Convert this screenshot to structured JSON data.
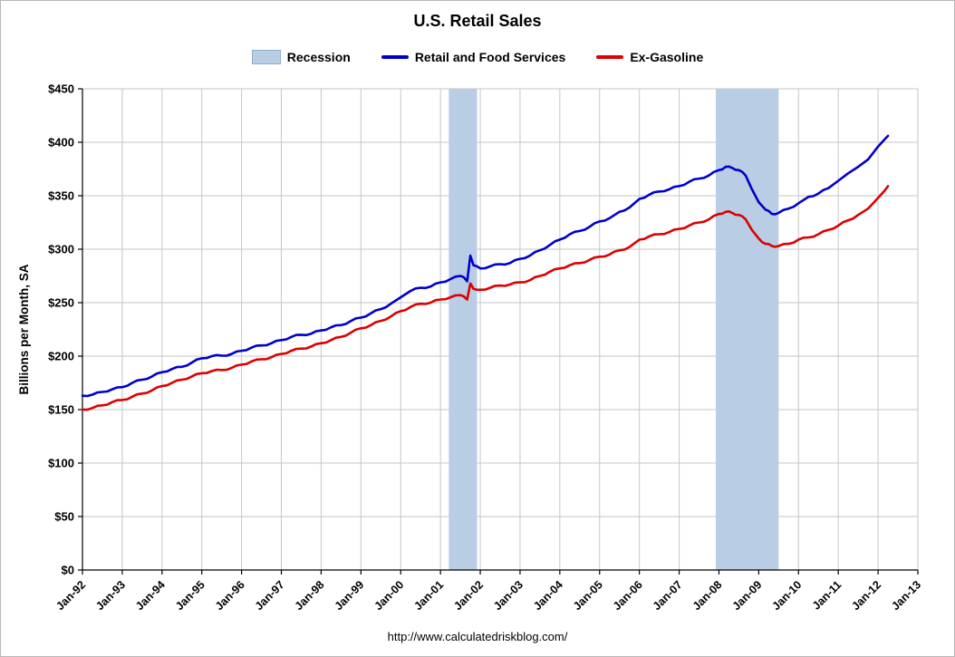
{
  "title": "U.S. Retail Sales",
  "source_url": "http://www.calculatedriskblog.com/",
  "chart_data": {
    "type": "line",
    "title": "U.S. Retail Sales",
    "ylabel": "Billions per Month, SA",
    "xlabel": "",
    "ylim": [
      0,
      450
    ],
    "yticks": [
      0,
      50,
      100,
      150,
      200,
      250,
      300,
      350,
      400,
      450
    ],
    "ytick_labels": [
      "$0",
      "$50",
      "$100",
      "$150",
      "$200",
      "$250",
      "$300",
      "$350",
      "$400",
      "$450"
    ],
    "xlim": [
      1992,
      2013
    ],
    "xticks": [
      1992,
      1993,
      1994,
      1995,
      1996,
      1997,
      1998,
      1999,
      2000,
      2001,
      2002,
      2003,
      2004,
      2005,
      2006,
      2007,
      2008,
      2009,
      2010,
      2011,
      2012,
      2013
    ],
    "xtick_labels": [
      "Jan-92",
      "Jan-93",
      "Jan-94",
      "Jan-95",
      "Jan-96",
      "Jan-97",
      "Jan-98",
      "Jan-99",
      "Jan-00",
      "Jan-01",
      "Jan-02",
      "Jan-03",
      "Jan-04",
      "Jan-05",
      "Jan-06",
      "Jan-07",
      "Jan-08",
      "Jan-09",
      "Jan-10",
      "Jan-11",
      "Jan-12",
      "Jan-13"
    ],
    "grid": true,
    "legend_position": "top",
    "colors": {
      "grid": "#c6c6c6",
      "axis": "#000000",
      "recession_band": "#b9cde5",
      "background": "#ffffff"
    },
    "legend": [
      {
        "label": "Recession",
        "swatch": "box",
        "color": "#b9cde5"
      },
      {
        "label": "Retail and Food Services",
        "swatch": "line",
        "color": "#0000cc"
      },
      {
        "label": "Ex-Gasoline",
        "swatch": "line",
        "color": "#dd0000"
      }
    ],
    "recessions": [
      {
        "start": 2001.21,
        "end": 2001.92
      },
      {
        "start": 2007.92,
        "end": 2009.5
      }
    ],
    "series": [
      {
        "name": "Retail and Food Services",
        "color": "#0000cc",
        "points": [
          [
            1992.0,
            163
          ],
          [
            1992.25,
            164
          ],
          [
            1992.5,
            166.5
          ],
          [
            1992.75,
            169
          ],
          [
            1993.0,
            171
          ],
          [
            1993.25,
            175
          ],
          [
            1993.5,
            178
          ],
          [
            1993.75,
            181
          ],
          [
            1994.0,
            185
          ],
          [
            1994.25,
            188
          ],
          [
            1994.5,
            190
          ],
          [
            1994.75,
            194
          ],
          [
            1995.0,
            198
          ],
          [
            1995.25,
            200
          ],
          [
            1995.5,
            200.5
          ],
          [
            1995.75,
            202
          ],
          [
            1996.0,
            205
          ],
          [
            1996.25,
            208
          ],
          [
            1996.5,
            210
          ],
          [
            1996.75,
            212
          ],
          [
            1997.0,
            215
          ],
          [
            1997.25,
            218
          ],
          [
            1997.5,
            220
          ],
          [
            1997.75,
            221
          ],
          [
            1998.0,
            224
          ],
          [
            1998.25,
            227
          ],
          [
            1998.5,
            229
          ],
          [
            1998.75,
            233
          ],
          [
            1999.0,
            236
          ],
          [
            1999.25,
            240
          ],
          [
            1999.5,
            244
          ],
          [
            1999.75,
            249
          ],
          [
            2000.0,
            255
          ],
          [
            2000.25,
            261
          ],
          [
            2000.5,
            264
          ],
          [
            2000.75,
            265
          ],
          [
            2001.0,
            269
          ],
          [
            2001.25,
            272
          ],
          [
            2001.5,
            275
          ],
          [
            2001.58,
            274
          ],
          [
            2001.67,
            270
          ],
          [
            2001.75,
            294
          ],
          [
            2001.83,
            285
          ],
          [
            2001.92,
            284
          ],
          [
            2002.0,
            282
          ],
          [
            2002.25,
            284
          ],
          [
            2002.5,
            286
          ],
          [
            2002.75,
            287
          ],
          [
            2003.0,
            291
          ],
          [
            2003.25,
            294
          ],
          [
            2003.5,
            299
          ],
          [
            2003.75,
            304
          ],
          [
            2004.0,
            309
          ],
          [
            2004.25,
            314
          ],
          [
            2004.5,
            317
          ],
          [
            2004.75,
            321
          ],
          [
            2005.0,
            326
          ],
          [
            2005.25,
            329
          ],
          [
            2005.5,
            335
          ],
          [
            2005.75,
            339
          ],
          [
            2006.0,
            347
          ],
          [
            2006.25,
            351
          ],
          [
            2006.5,
            354
          ],
          [
            2006.75,
            356
          ],
          [
            2007.0,
            359
          ],
          [
            2007.25,
            363
          ],
          [
            2007.5,
            366
          ],
          [
            2007.75,
            369
          ],
          [
            2008.0,
            374
          ],
          [
            2008.17,
            377
          ],
          [
            2008.33,
            376
          ],
          [
            2008.5,
            374
          ],
          [
            2008.67,
            369
          ],
          [
            2008.83,
            356
          ],
          [
            2009.0,
            344
          ],
          [
            2009.17,
            337
          ],
          [
            2009.33,
            333
          ],
          [
            2009.5,
            334
          ],
          [
            2009.75,
            338
          ],
          [
            2010.0,
            343
          ],
          [
            2010.25,
            349
          ],
          [
            2010.5,
            352
          ],
          [
            2010.75,
            357
          ],
          [
            2011.0,
            364
          ],
          [
            2011.25,
            371
          ],
          [
            2011.5,
            377
          ],
          [
            2011.75,
            384
          ],
          [
            2012.0,
            396
          ],
          [
            2012.17,
            403
          ],
          [
            2012.25,
            406
          ]
        ]
      },
      {
        "name": "Ex-Gasoline",
        "color": "#dd0000",
        "points": [
          [
            1992.0,
            150
          ],
          [
            1992.25,
            151.5
          ],
          [
            1992.5,
            154
          ],
          [
            1992.75,
            157
          ],
          [
            1993.0,
            159
          ],
          [
            1993.25,
            162
          ],
          [
            1993.5,
            165
          ],
          [
            1993.75,
            168
          ],
          [
            1994.0,
            172
          ],
          [
            1994.25,
            175
          ],
          [
            1994.5,
            178
          ],
          [
            1994.75,
            181
          ],
          [
            1995.0,
            184
          ],
          [
            1995.25,
            186
          ],
          [
            1995.5,
            187
          ],
          [
            1995.75,
            189
          ],
          [
            1996.0,
            192
          ],
          [
            1996.25,
            195
          ],
          [
            1996.5,
            197
          ],
          [
            1996.75,
            199
          ],
          [
            1997.0,
            202
          ],
          [
            1997.25,
            205
          ],
          [
            1997.5,
            207
          ],
          [
            1997.75,
            209
          ],
          [
            1998.0,
            212
          ],
          [
            1998.25,
            215
          ],
          [
            1998.5,
            218
          ],
          [
            1998.75,
            222
          ],
          [
            1999.0,
            226
          ],
          [
            1999.25,
            229
          ],
          [
            1999.5,
            233
          ],
          [
            1999.75,
            237
          ],
          [
            2000.0,
            242
          ],
          [
            2000.25,
            246
          ],
          [
            2000.5,
            249
          ],
          [
            2000.75,
            250
          ],
          [
            2001.0,
            253
          ],
          [
            2001.25,
            255
          ],
          [
            2001.5,
            257
          ],
          [
            2001.58,
            256
          ],
          [
            2001.67,
            253
          ],
          [
            2001.75,
            268
          ],
          [
            2001.83,
            263
          ],
          [
            2001.92,
            262
          ],
          [
            2002.0,
            262
          ],
          [
            2002.25,
            264
          ],
          [
            2002.5,
            266
          ],
          [
            2002.75,
            267
          ],
          [
            2003.0,
            269
          ],
          [
            2003.25,
            271
          ],
          [
            2003.5,
            275
          ],
          [
            2003.75,
            279
          ],
          [
            2004.0,
            282
          ],
          [
            2004.25,
            285
          ],
          [
            2004.5,
            287
          ],
          [
            2004.75,
            290
          ],
          [
            2005.0,
            293
          ],
          [
            2005.25,
            295
          ],
          [
            2005.5,
            299
          ],
          [
            2005.75,
            302
          ],
          [
            2006.0,
            309
          ],
          [
            2006.25,
            312
          ],
          [
            2006.5,
            314
          ],
          [
            2006.75,
            316
          ],
          [
            2007.0,
            319
          ],
          [
            2007.25,
            322
          ],
          [
            2007.5,
            325
          ],
          [
            2007.75,
            328
          ],
          [
            2008.0,
            333
          ],
          [
            2008.17,
            335
          ],
          [
            2008.33,
            334
          ],
          [
            2008.5,
            332
          ],
          [
            2008.67,
            328
          ],
          [
            2008.83,
            318
          ],
          [
            2009.0,
            310
          ],
          [
            2009.17,
            305
          ],
          [
            2009.33,
            303
          ],
          [
            2009.5,
            303
          ],
          [
            2009.75,
            305
          ],
          [
            2010.0,
            309
          ],
          [
            2010.25,
            311
          ],
          [
            2010.5,
            314
          ],
          [
            2010.75,
            318
          ],
          [
            2011.0,
            322
          ],
          [
            2011.25,
            327
          ],
          [
            2011.5,
            332
          ],
          [
            2011.75,
            338
          ],
          [
            2012.0,
            348
          ],
          [
            2012.17,
            355
          ],
          [
            2012.25,
            359
          ]
        ]
      }
    ]
  }
}
